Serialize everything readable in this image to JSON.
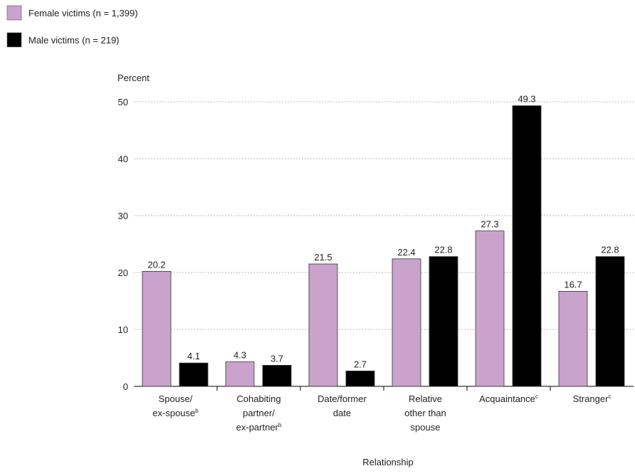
{
  "chart_data": {
    "type": "bar",
    "y_axis_label": "Percent",
    "x_axis_label": "Relationship",
    "categories": [
      "Spouse/ ex-spouse",
      "Cohabiting partner/ ex-partner",
      "Date/former date",
      "Relative other than spouse",
      "Acquaintance",
      "Stranger"
    ],
    "category_notes": {
      "0": "b",
      "1": "b",
      "4": "c",
      "5": "c"
    },
    "series": [
      {
        "name": "Female victims (n = 1,399)",
        "color": "#c9a3cc",
        "values": [
          20.2,
          4.3,
          21.5,
          22.4,
          27.3,
          16.7
        ]
      },
      {
        "name": "Male victims (n = 219)",
        "color": "#000000",
        "values": [
          4.1,
          3.7,
          2.7,
          22.8,
          49.3,
          22.8
        ]
      }
    ],
    "ylim": [
      0,
      50
    ],
    "yticks": [
      0,
      10,
      20,
      30,
      40,
      50
    ],
    "grid": true,
    "legend": "top-left"
  }
}
